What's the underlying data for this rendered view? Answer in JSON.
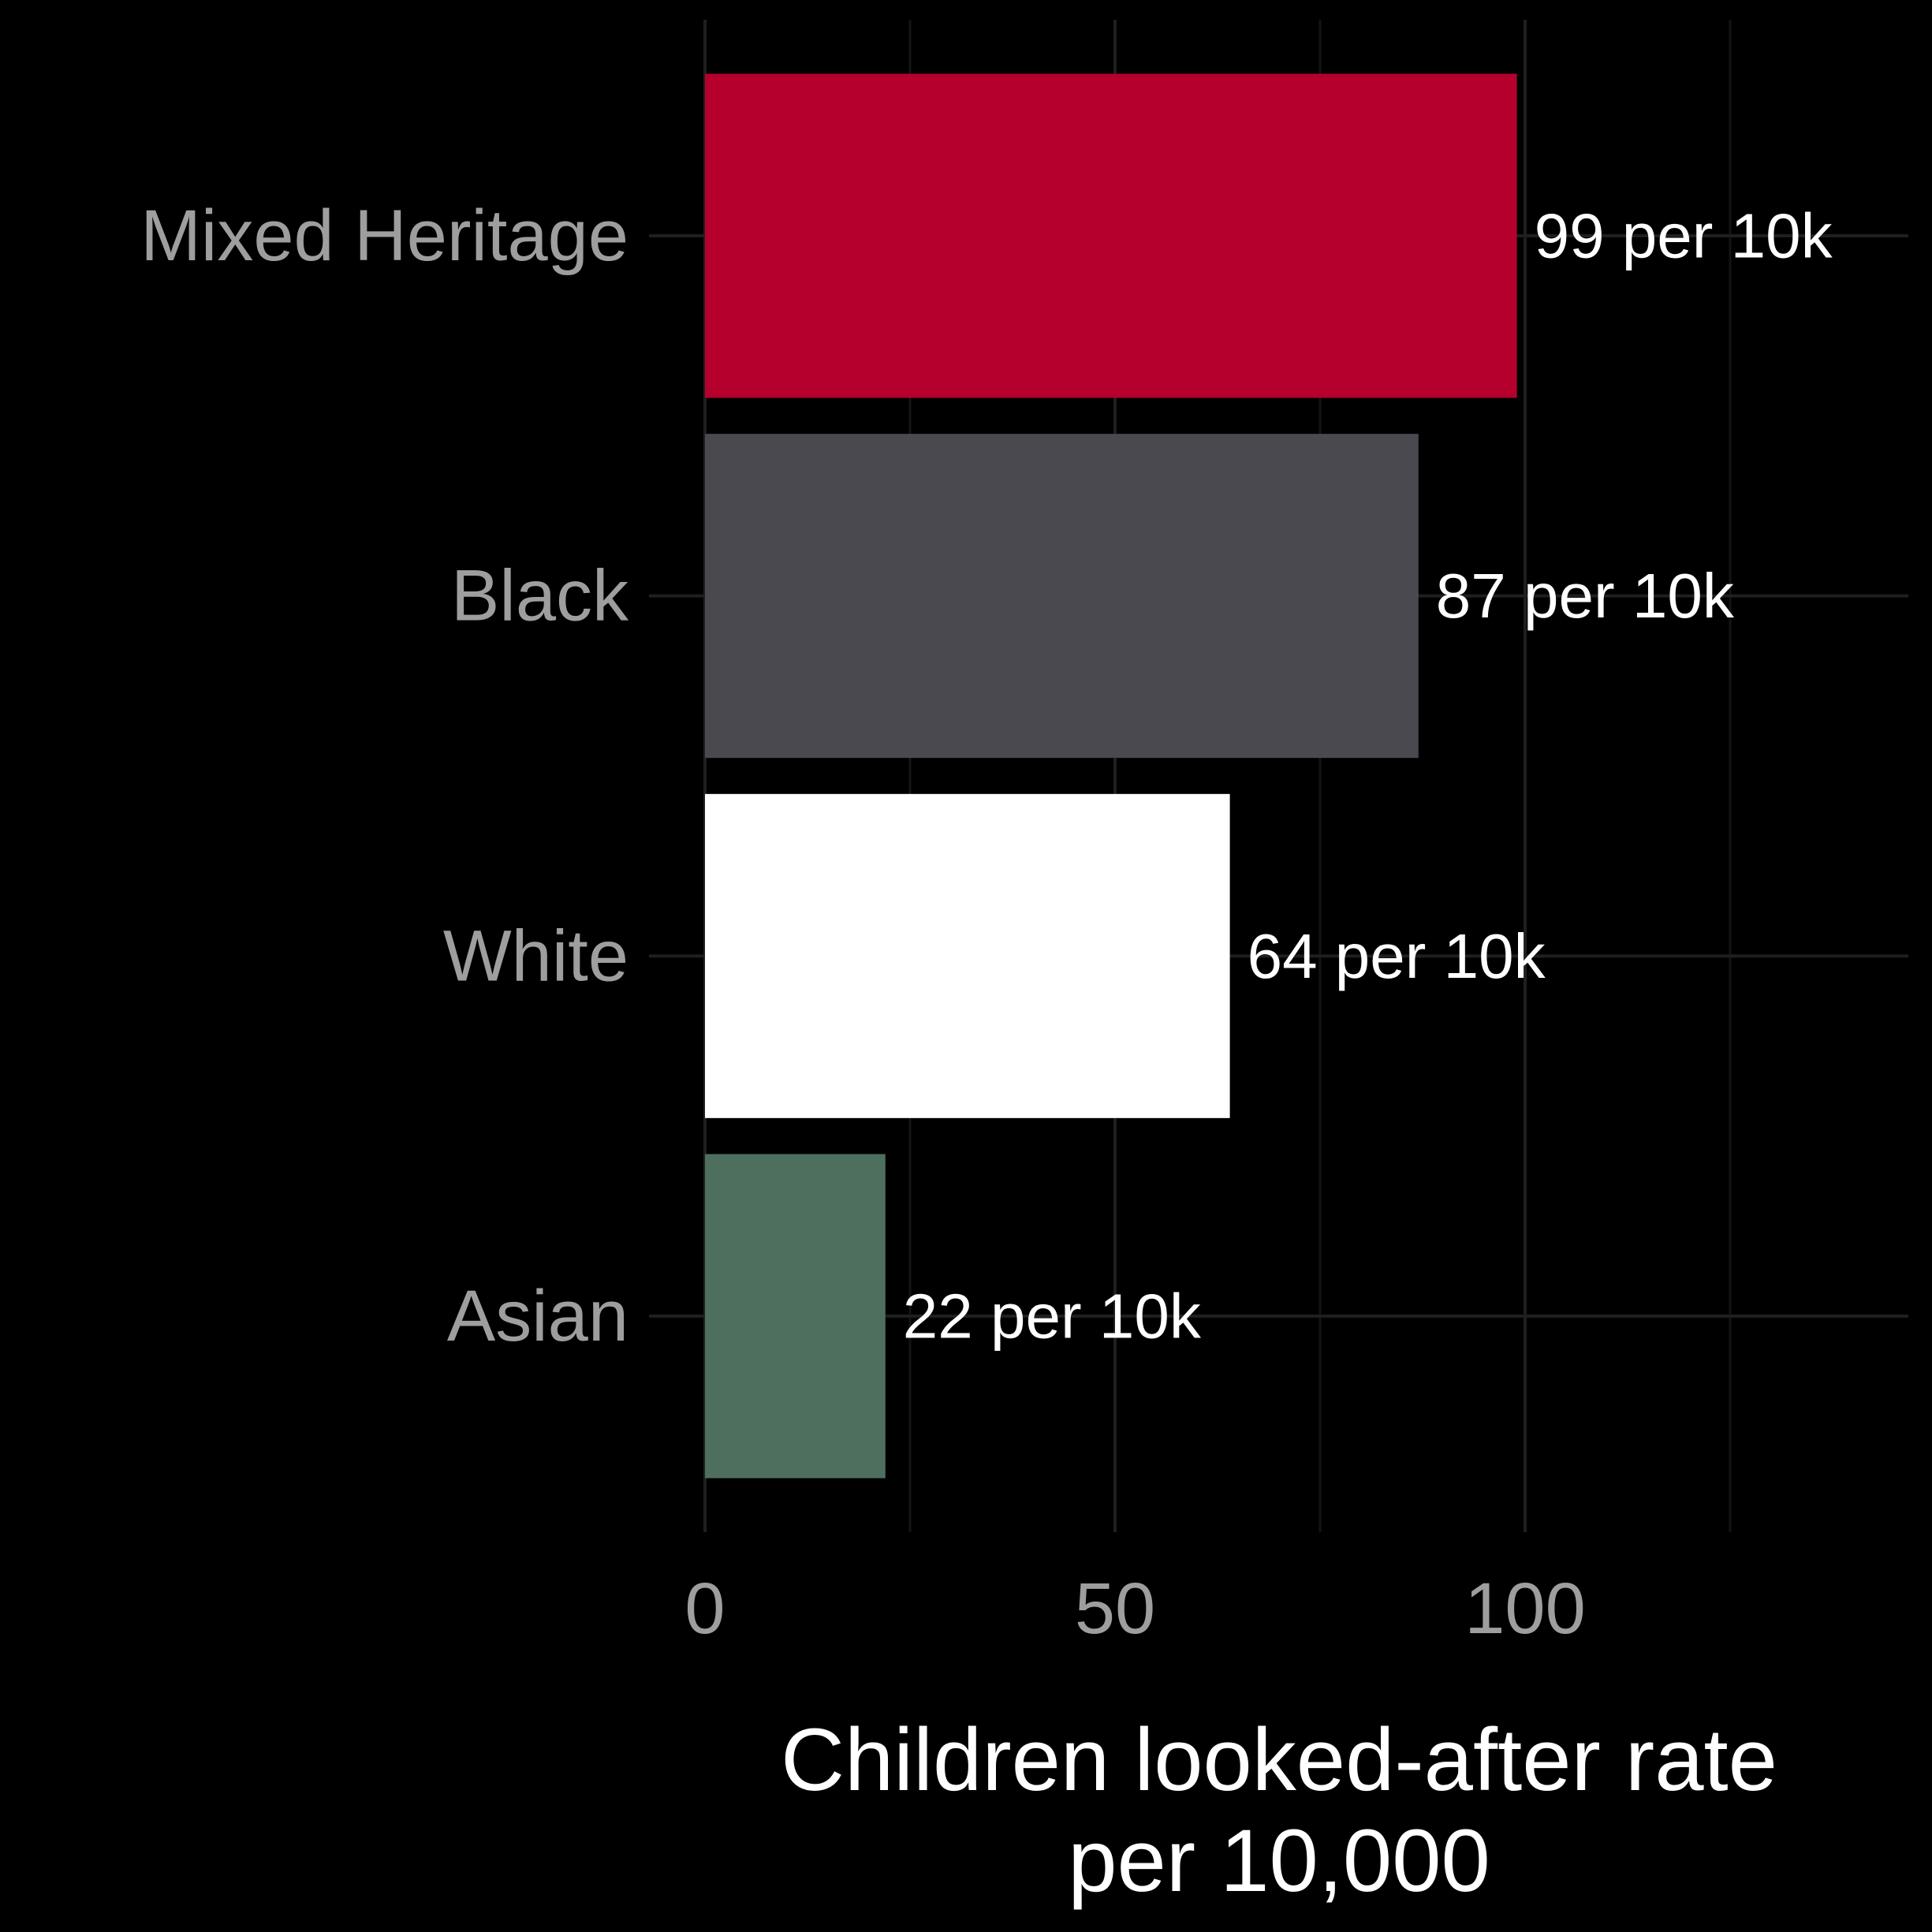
{
  "chart_data": {
    "type": "bar",
    "orientation": "horizontal",
    "categories": [
      "Mixed Heritage",
      "Black",
      "White",
      "Asian"
    ],
    "values": [
      99,
      87,
      64,
      22
    ],
    "data_labels": [
      "99 per 10k",
      "87 per 10k",
      "64 per 10k",
      "22 per 10k"
    ],
    "colors": [
      "#b5002d",
      "#4a494f",
      "#ffffff",
      "#4e6f5e"
    ],
    "xlabel_lines": [
      "Children looked-after rate",
      "per 10,000"
    ],
    "ylabel": "",
    "xlim": [
      0,
      147
    ],
    "x_ticks": [
      0,
      50,
      100
    ],
    "x_tick_labels": [
      "0",
      "50",
      "100"
    ],
    "grid": true,
    "legend": "none",
    "background": "#000000"
  }
}
